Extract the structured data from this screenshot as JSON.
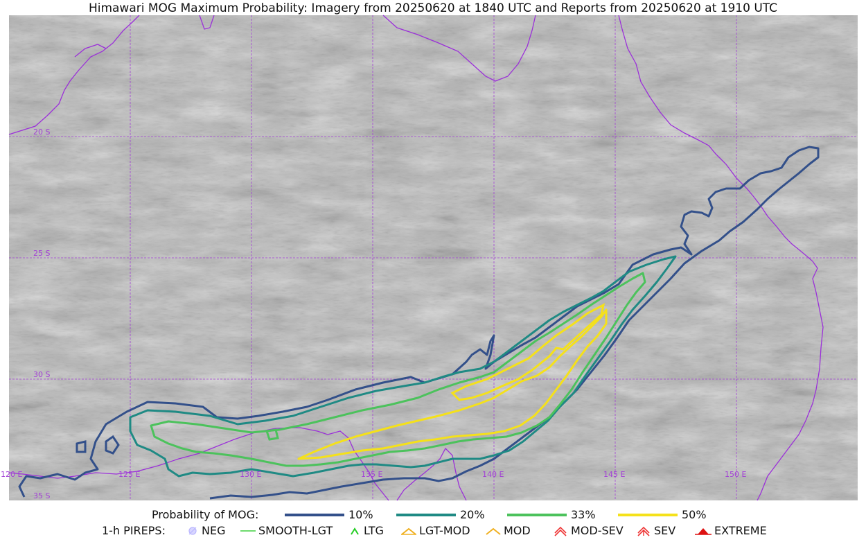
{
  "title": "Himawari MOG Maximum Probability: Imagery from 20250620 at 1840 UTC and Reports from 20250620 at 1910 UTC",
  "map": {
    "lon_range": [
      120,
      155
    ],
    "lat_range": [
      -35,
      -15
    ],
    "lon_labels": [
      "120 E",
      "125 E",
      "130 E",
      "135 E",
      "140 E",
      "145 E",
      "150 E"
    ],
    "lat_labels": [
      "20 S",
      "25 S",
      "30 S",
      "35 S"
    ],
    "gridline_color": "#a23fd6",
    "coastline_color": "#9b30d9",
    "background": "grayscale satellite imagery"
  },
  "legend_probability": {
    "label": "Probability of MOG:",
    "levels": [
      {
        "name": "10%",
        "color": "#33508a"
      },
      {
        "name": "20%",
        "color": "#1f8a84"
      },
      {
        "name": "33%",
        "color": "#4cc25c"
      },
      {
        "name": "50%",
        "color": "#f5e11a"
      }
    ]
  },
  "legend_pireps": {
    "label": "1-h PIREPS:",
    "items": [
      {
        "name": "NEG",
        "icon": "neg-icon",
        "color": "#b9b5ff"
      },
      {
        "name": "SMOOTH-LGT",
        "icon": "smooth-lgt-icon",
        "color": "#3ecf3e"
      },
      {
        "name": "LTG",
        "icon": "ltg-icon",
        "color": "#22cc22"
      },
      {
        "name": "LGT-MOD",
        "icon": "lgt-mod-icon",
        "color": "#f0b020"
      },
      {
        "name": "MOD",
        "icon": "mod-icon",
        "color": "#f0b020"
      },
      {
        "name": "MOD-SEV",
        "icon": "mod-sev-icon",
        "color": "#ee3333"
      },
      {
        "name": "SEV",
        "icon": "sev-icon",
        "color": "#ee3333"
      },
      {
        "name": "EXTREME",
        "icon": "extreme-icon",
        "color": "#dd1111"
      }
    ]
  }
}
